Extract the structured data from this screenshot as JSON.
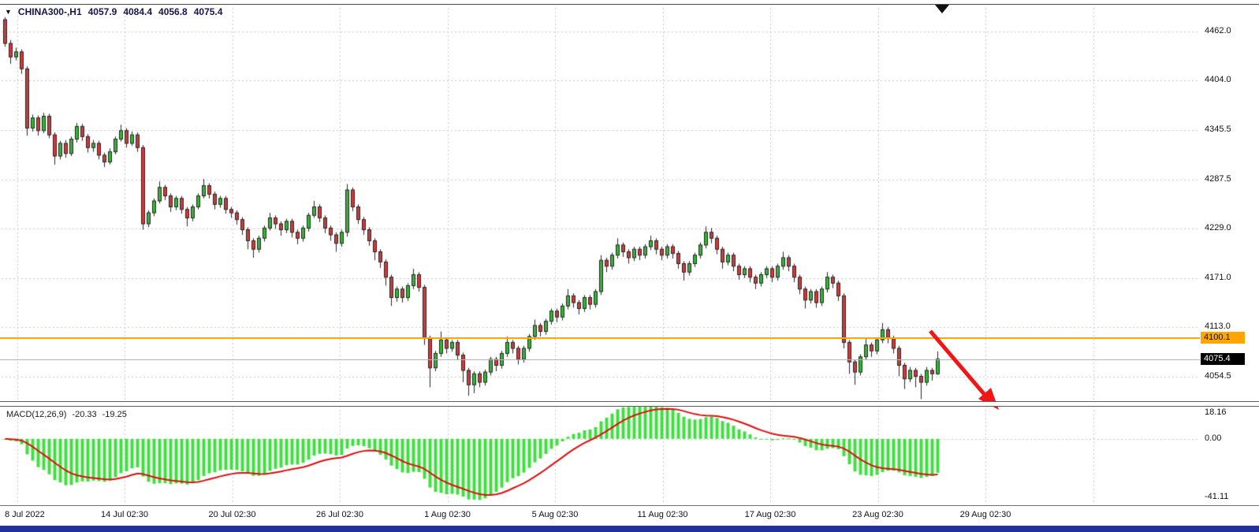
{
  "header": {
    "dropdown_icon": "▼",
    "symbol": "CHINA300-,H1",
    "open": "4057.9",
    "high": "4084.4",
    "low": "4056.8",
    "close": "4075.4"
  },
  "indicator": {
    "name": "MACD(12,26,9)",
    "macd_value": "-20.33",
    "signal_value": "-19.25",
    "ticks": [
      "18.16",
      "0.00",
      "-41.11"
    ]
  },
  "price_axis": {
    "hline_label": "4100.1",
    "current_price_label": "4075.4"
  },
  "colors": {
    "up_candle": "#35b535",
    "down_candle": "#d03a3a",
    "candle_outline": "#262626",
    "grid": "#c9c9c9",
    "hline": "#ffa500",
    "bid_line": "#b4b4b4",
    "macd_histogram": "#3fdf3f",
    "macd_signal": "#dc1010",
    "arrow": "#f31515",
    "current_tag_bg": "#000000",
    "bottom_bar": "#22309e",
    "marker": "#111111"
  },
  "chart_data": {
    "type": "candlestick",
    "symbol": "CHINA300-",
    "timeframe": "H1",
    "title": "CHINA300-,H1",
    "price_ticks": [
      4462.0,
      4404.0,
      4345.5,
      4287.5,
      4229.0,
      4171.0,
      4113.0,
      4054.5
    ],
    "time_labels": [
      "8 Jul 2022",
      "14 Jul 02:30",
      "20 Jul 02:30",
      "26 Jul 02:30",
      "1 Aug 02:30",
      "5 Aug 02:30",
      "11 Aug 02:30",
      "17 Aug 02:30",
      "23 Aug 02:30",
      "29 Aug 02:30"
    ],
    "horizontal_line": 4100.1,
    "last_price": 4075.4,
    "last_bar": {
      "open": 4057.9,
      "high": 4084.4,
      "low": 4056.8,
      "close": 4075.4
    },
    "indicator": {
      "type": "macd",
      "fast": 12,
      "slow": 26,
      "signal": 9,
      "current_macd": -20.33,
      "current_signal": -19.25,
      "axis_ticks": [
        18.16,
        0.0,
        -41.11
      ]
    },
    "annotations": [
      {
        "type": "horizontal_line",
        "price": 4100.1,
        "color": "#ffa500"
      },
      {
        "type": "trend-arrow",
        "direction": "down-right",
        "color": "#f31515"
      }
    ],
    "candles_ohlc": [
      [
        4476,
        4479,
        4444,
        4448
      ],
      [
        4448,
        4452,
        4424,
        4432
      ],
      [
        4432,
        4443,
        4428,
        4438
      ],
      [
        4438,
        4441,
        4412,
        4418
      ],
      [
        4418,
        4421,
        4339,
        4348
      ],
      [
        4348,
        4364,
        4344,
        4360
      ],
      [
        4360,
        4363,
        4339,
        4345
      ],
      [
        4345,
        4366,
        4342,
        4362
      ],
      [
        4362,
        4365,
        4336,
        4340
      ],
      [
        4340,
        4343,
        4305,
        4315
      ],
      [
        4315,
        4333,
        4311,
        4330
      ],
      [
        4330,
        4334,
        4313,
        4318
      ],
      [
        4318,
        4338,
        4315,
        4335
      ],
      [
        4335,
        4354,
        4331,
        4350
      ],
      [
        4350,
        4353,
        4333,
        4338
      ],
      [
        4338,
        4341,
        4319,
        4325
      ],
      [
        4325,
        4334,
        4320,
        4330
      ],
      [
        4330,
        4333,
        4311,
        4316
      ],
      [
        4316,
        4319,
        4302,
        4308
      ],
      [
        4308,
        4324,
        4305,
        4320
      ],
      [
        4320,
        4338,
        4317,
        4335
      ],
      [
        4335,
        4352,
        4332,
        4345
      ],
      [
        4345,
        4348,
        4325,
        4330
      ],
      [
        4330,
        4344,
        4327,
        4340
      ],
      [
        4340,
        4343,
        4320,
        4325
      ],
      [
        4325,
        4328,
        4228,
        4235
      ],
      [
        4235,
        4251,
        4231,
        4248
      ],
      [
        4248,
        4265,
        4244,
        4262
      ],
      [
        4262,
        4285,
        4259,
        4278
      ],
      [
        4278,
        4281,
        4263,
        4268
      ],
      [
        4268,
        4271,
        4249,
        4255
      ],
      [
        4255,
        4268,
        4251,
        4265
      ],
      [
        4265,
        4268,
        4247,
        4252
      ],
      [
        4252,
        4255,
        4232,
        4242
      ],
      [
        4242,
        4258,
        4238,
        4255
      ],
      [
        4255,
        4271,
        4252,
        4268
      ],
      [
        4268,
        4288,
        4265,
        4280
      ],
      [
        4280,
        4283,
        4265,
        4270
      ],
      [
        4270,
        4273,
        4252,
        4258
      ],
      [
        4258,
        4268,
        4254,
        4265
      ],
      [
        4265,
        4268,
        4247,
        4252
      ],
      [
        4252,
        4255,
        4242,
        4248
      ],
      [
        4248,
        4251,
        4234,
        4240
      ],
      [
        4240,
        4243,
        4222,
        4228
      ],
      [
        4228,
        4231,
        4205,
        4215
      ],
      [
        4215,
        4218,
        4195,
        4205
      ],
      [
        4205,
        4221,
        4201,
        4218
      ],
      [
        4218,
        4233,
        4214,
        4230
      ],
      [
        4230,
        4248,
        4227,
        4242
      ],
      [
        4242,
        4245,
        4229,
        4235
      ],
      [
        4235,
        4238,
        4221,
        4228
      ],
      [
        4228,
        4241,
        4224,
        4238
      ],
      [
        4238,
        4241,
        4219,
        4225
      ],
      [
        4225,
        4228,
        4211,
        4218
      ],
      [
        4218,
        4233,
        4214,
        4230
      ],
      [
        4230,
        4248,
        4226,
        4245
      ],
      [
        4245,
        4262,
        4242,
        4255
      ],
      [
        4255,
        4258,
        4237,
        4242
      ],
      [
        4242,
        4245,
        4224,
        4230
      ],
      [
        4230,
        4233,
        4215,
        4222
      ],
      [
        4222,
        4225,
        4202,
        4212
      ],
      [
        4212,
        4228,
        4208,
        4225
      ],
      [
        4225,
        4282,
        4220,
        4275
      ],
      [
        4275,
        4278,
        4250,
        4255
      ],
      [
        4255,
        4258,
        4235,
        4240
      ],
      [
        4240,
        4243,
        4222,
        4228
      ],
      [
        4228,
        4231,
        4209,
        4215
      ],
      [
        4215,
        4218,
        4192,
        4202
      ],
      [
        4202,
        4205,
        4183,
        4190
      ],
      [
        4190,
        4193,
        4162,
        4172
      ],
      [
        4172,
        4175,
        4138,
        4148
      ],
      [
        4148,
        4161,
        4143,
        4158
      ],
      [
        4158,
        4161,
        4142,
        4148
      ],
      [
        4148,
        4165,
        4144,
        4162
      ],
      [
        4162,
        4182,
        4158,
        4175
      ],
      [
        4175,
        4178,
        4155,
        4160
      ],
      [
        4160,
        4163,
        4092,
        4100
      ],
      [
        4100,
        4103,
        4042,
        4065
      ],
      [
        4065,
        4085,
        4061,
        4082
      ],
      [
        4082,
        4108,
        4078,
        4098
      ],
      [
        4098,
        4101,
        4082,
        4088
      ],
      [
        4088,
        4098,
        4084,
        4095
      ],
      [
        4095,
        4098,
        4074,
        4080
      ],
      [
        4080,
        4083,
        4048,
        4062
      ],
      [
        4062,
        4065,
        4032,
        4045
      ],
      [
        4045,
        4061,
        4035,
        4058
      ],
      [
        4058,
        4061,
        4042,
        4048
      ],
      [
        4048,
        4063,
        4044,
        4060
      ],
      [
        4060,
        4078,
        4056,
        4075
      ],
      [
        4075,
        4078,
        4061,
        4068
      ],
      [
        4068,
        4085,
        4064,
        4082
      ],
      [
        4082,
        4102,
        4078,
        4095
      ],
      [
        4095,
        4098,
        4082,
        4088
      ],
      [
        4088,
        4091,
        4069,
        4075
      ],
      [
        4075,
        4091,
        4071,
        4088
      ],
      [
        4088,
        4105,
        4084,
        4102
      ],
      [
        4102,
        4122,
        4098,
        4115
      ],
      [
        4115,
        4118,
        4102,
        4108
      ],
      [
        4108,
        4123,
        4104,
        4120
      ],
      [
        4120,
        4135,
        4116,
        4132
      ],
      [
        4132,
        4135,
        4119,
        4125
      ],
      [
        4125,
        4141,
        4121,
        4138
      ],
      [
        4138,
        4158,
        4134,
        4150
      ],
      [
        4150,
        4153,
        4136,
        4142
      ],
      [
        4142,
        4145,
        4128,
        4135
      ],
      [
        4135,
        4151,
        4131,
        4148
      ],
      [
        4148,
        4151,
        4134,
        4140
      ],
      [
        4140,
        4158,
        4136,
        4155
      ],
      [
        4155,
        4198,
        4151,
        4192
      ],
      [
        4192,
        4195,
        4178,
        4185
      ],
      [
        4185,
        4201,
        4181,
        4198
      ],
      [
        4198,
        4218,
        4194,
        4210
      ],
      [
        4210,
        4213,
        4196,
        4202
      ],
      [
        4202,
        4205,
        4188,
        4195
      ],
      [
        4195,
        4208,
        4191,
        4205
      ],
      [
        4205,
        4208,
        4192,
        4198
      ],
      [
        4198,
        4211,
        4194,
        4208
      ],
      [
        4208,
        4221,
        4204,
        4215
      ],
      [
        4215,
        4218,
        4199,
        4205
      ],
      [
        4205,
        4208,
        4192,
        4198
      ],
      [
        4198,
        4211,
        4194,
        4208
      ],
      [
        4208,
        4211,
        4194,
        4200
      ],
      [
        4200,
        4203,
        4182,
        4188
      ],
      [
        4188,
        4191,
        4168,
        4178
      ],
      [
        4178,
        4191,
        4174,
        4188
      ],
      [
        4188,
        4201,
        4184,
        4198
      ],
      [
        4198,
        4213,
        4194,
        4210
      ],
      [
        4210,
        4232,
        4206,
        4225
      ],
      [
        4225,
        4230,
        4212,
        4218
      ],
      [
        4218,
        4221,
        4199,
        4205
      ],
      [
        4205,
        4208,
        4182,
        4190
      ],
      [
        4190,
        4201,
        4186,
        4198
      ],
      [
        4198,
        4201,
        4179,
        4185
      ],
      [
        4185,
        4188,
        4169,
        4175
      ],
      [
        4175,
        4185,
        4171,
        4182
      ],
      [
        4182,
        4185,
        4166,
        4172
      ],
      [
        4172,
        4175,
        4158,
        4165
      ],
      [
        4165,
        4178,
        4161,
        4175
      ],
      [
        4175,
        4185,
        4171,
        4182
      ],
      [
        4182,
        4185,
        4166,
        4172
      ],
      [
        4172,
        4188,
        4168,
        4185
      ],
      [
        4185,
        4202,
        4181,
        4195
      ],
      [
        4195,
        4198,
        4179,
        4185
      ],
      [
        4185,
        4188,
        4166,
        4172
      ],
      [
        4172,
        4175,
        4152,
        4158
      ],
      [
        4158,
        4161,
        4135,
        4145
      ],
      [
        4145,
        4158,
        4141,
        4155
      ],
      [
        4155,
        4158,
        4136,
        4142
      ],
      [
        4142,
        4161,
        4138,
        4158
      ],
      [
        4158,
        4178,
        4154,
        4172
      ],
      [
        4172,
        4175,
        4159,
        4165
      ],
      [
        4165,
        4168,
        4144,
        4150
      ],
      [
        4150,
        4153,
        4088,
        4095
      ],
      [
        4095,
        4098,
        4058,
        4072
      ],
      [
        4072,
        4075,
        4045,
        4060
      ],
      [
        4060,
        4081,
        4056,
        4078
      ],
      [
        4078,
        4100,
        4074,
        4092
      ],
      [
        4092,
        4095,
        4078,
        4085
      ],
      [
        4085,
        4101,
        4081,
        4098
      ],
      [
        4098,
        4118,
        4094,
        4110
      ],
      [
        4110,
        4113,
        4094,
        4100
      ],
      [
        4100,
        4103,
        4082,
        4088
      ],
      [
        4088,
        4091,
        4055,
        4068
      ],
      [
        4068,
        4071,
        4040,
        4052
      ],
      [
        4052,
        4066,
        4048,
        4062
      ],
      [
        4062,
        4065,
        4042,
        4055
      ],
      [
        4055,
        4058,
        4028,
        4048
      ],
      [
        4048,
        4066,
        4044,
        4062
      ],
      [
        4062,
        4065,
        4050,
        4058
      ],
      [
        4057.9,
        4084.4,
        4056.8,
        4075.4
      ]
    ]
  }
}
